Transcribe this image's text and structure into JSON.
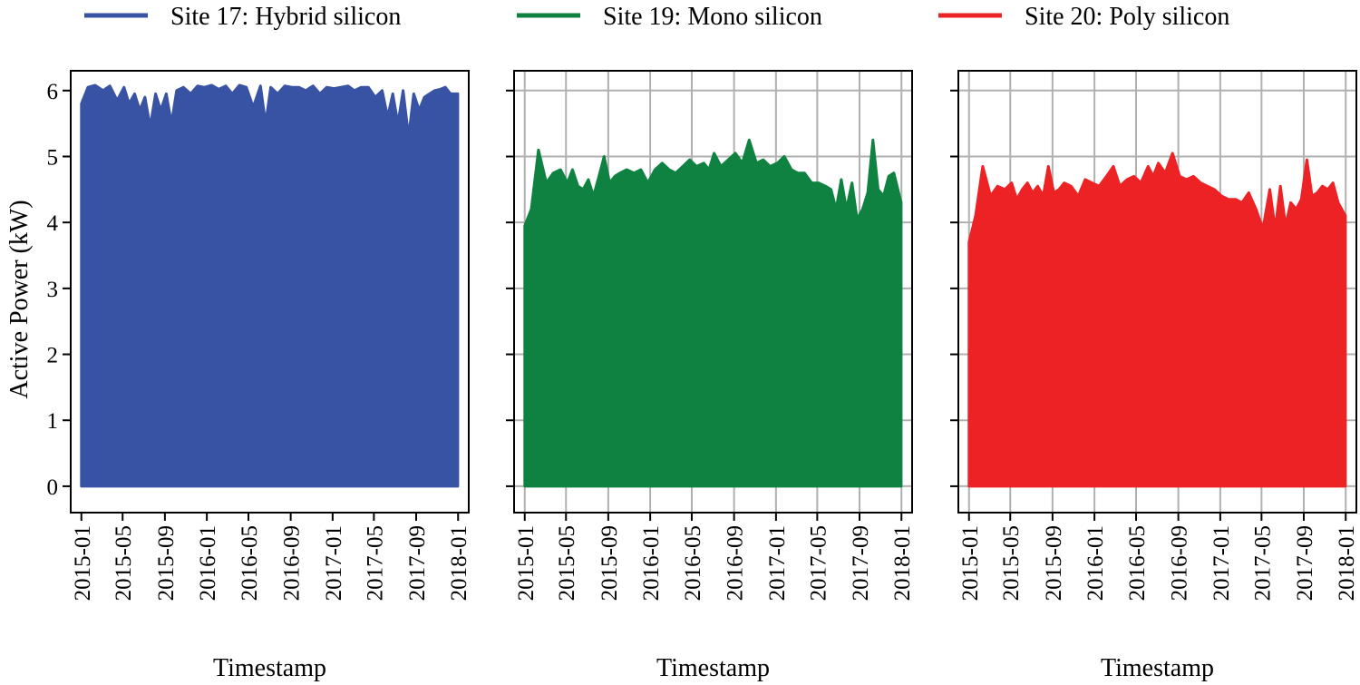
{
  "legend": [
    {
      "label": "Site 17: Hybrid silicon",
      "color": "#3953a4"
    },
    {
      "label": "Site 19: Mono silicon",
      "color": "#0f8241"
    },
    {
      "label": "Site 20: Poly silicon",
      "color": "#ed2224"
    }
  ],
  "chart_data": [
    {
      "type": "area",
      "series_name": "Site 17: Hybrid silicon",
      "color": "#3953a4",
      "xlabel": "Timestamp",
      "ylabel": "Active Power (kW)",
      "ylim": [
        -0.4,
        6.3
      ],
      "yticks": [
        0,
        1,
        2,
        3,
        4,
        5,
        6
      ],
      "xlim": [
        "2014-12-01",
        "2018-02-01"
      ],
      "xticks": [
        "2015-01",
        "2015-05",
        "2015-09",
        "2016-01",
        "2016-05",
        "2016-09",
        "2017-01",
        "2017-05",
        "2017-09",
        "2018-01"
      ],
      "grid": false,
      "peak_envelope": {
        "x": [
          "2015-01-01",
          "2015-01-20",
          "2015-02-10",
          "2015-03-05",
          "2015-03-25",
          "2015-04-15",
          "2015-05-05",
          "2015-05-20",
          "2015-06-05",
          "2015-06-20",
          "2015-07-05",
          "2015-07-20",
          "2015-08-05",
          "2015-08-20",
          "2015-09-05",
          "2015-09-20",
          "2015-10-05",
          "2015-10-25",
          "2015-11-15",
          "2015-12-05",
          "2015-12-25",
          "2016-01-15",
          "2016-02-05",
          "2016-02-25",
          "2016-03-15",
          "2016-04-05",
          "2016-04-25",
          "2016-05-15",
          "2016-06-05",
          "2016-06-20",
          "2016-07-05",
          "2016-07-25",
          "2016-08-15",
          "2016-09-05",
          "2016-09-25",
          "2016-10-15",
          "2016-11-05",
          "2016-11-25",
          "2016-12-15",
          "2017-01-05",
          "2017-01-25",
          "2017-02-15",
          "2017-03-05",
          "2017-03-25",
          "2017-04-15",
          "2017-05-05",
          "2017-05-25",
          "2017-06-10",
          "2017-06-25",
          "2017-07-10",
          "2017-07-25",
          "2017-08-10",
          "2017-08-25",
          "2017-09-10",
          "2017-09-25",
          "2017-10-10",
          "2017-10-25",
          "2017-11-10",
          "2017-11-25",
          "2017-12-10",
          "2017-12-31"
        ],
        "y": [
          5.8,
          6.05,
          6.08,
          6.0,
          6.07,
          5.85,
          6.05,
          5.8,
          5.95,
          5.7,
          5.9,
          5.45,
          5.95,
          5.7,
          5.95,
          5.5,
          6.0,
          6.05,
          5.95,
          6.07,
          6.05,
          6.08,
          6.02,
          6.07,
          5.95,
          6.08,
          6.05,
          5.75,
          6.07,
          5.5,
          6.05,
          5.95,
          6.07,
          6.05,
          6.05,
          6.0,
          6.07,
          5.95,
          6.05,
          6.03,
          6.05,
          6.07,
          6.0,
          6.05,
          6.05,
          5.9,
          6.0,
          5.6,
          5.95,
          5.5,
          6.0,
          5.3,
          5.95,
          5.7,
          5.9,
          5.95,
          6.0,
          6.02,
          6.05,
          5.95,
          5.95
        ]
      }
    },
    {
      "type": "area",
      "series_name": "Site 19: Mono silicon",
      "color": "#0f8241",
      "xlabel": "Timestamp",
      "ylabel": "",
      "ylim": [
        -0.4,
        6.3
      ],
      "yticks": [
        0,
        1,
        2,
        3,
        4,
        5,
        6
      ],
      "xlim": [
        "2014-12-01",
        "2018-02-01"
      ],
      "xticks": [
        "2015-01",
        "2015-05",
        "2015-09",
        "2016-01",
        "2016-05",
        "2016-09",
        "2017-01",
        "2017-05",
        "2017-09",
        "2018-01"
      ],
      "grid": true,
      "peak_envelope": {
        "x": [
          "2015-01-01",
          "2015-01-20",
          "2015-02-10",
          "2015-03-05",
          "2015-03-25",
          "2015-04-15",
          "2015-05-05",
          "2015-05-20",
          "2015-06-05",
          "2015-06-20",
          "2015-07-05",
          "2015-07-20",
          "2015-08-05",
          "2015-08-20",
          "2015-09-05",
          "2015-09-20",
          "2015-10-05",
          "2015-10-25",
          "2015-11-15",
          "2015-12-05",
          "2015-12-25",
          "2016-01-15",
          "2016-02-05",
          "2016-02-25",
          "2016-03-15",
          "2016-04-05",
          "2016-04-25",
          "2016-05-15",
          "2016-06-05",
          "2016-06-20",
          "2016-07-05",
          "2016-07-25",
          "2016-08-15",
          "2016-09-05",
          "2016-09-25",
          "2016-10-15",
          "2016-11-05",
          "2016-11-25",
          "2016-12-15",
          "2017-01-05",
          "2017-01-25",
          "2017-02-15",
          "2017-03-05",
          "2017-03-25",
          "2017-04-15",
          "2017-05-05",
          "2017-05-25",
          "2017-06-10",
          "2017-06-25",
          "2017-07-10",
          "2017-07-25",
          "2017-08-10",
          "2017-08-25",
          "2017-09-10",
          "2017-09-25",
          "2017-10-10",
          "2017-10-25",
          "2017-11-10",
          "2017-11-25",
          "2017-12-10",
          "2017-12-31"
        ],
        "y": [
          3.95,
          4.2,
          5.1,
          4.6,
          4.75,
          4.8,
          4.6,
          4.8,
          4.55,
          4.5,
          4.65,
          4.4,
          4.7,
          5.0,
          4.6,
          4.7,
          4.75,
          4.8,
          4.75,
          4.8,
          4.6,
          4.8,
          4.9,
          4.8,
          4.75,
          4.85,
          4.95,
          4.85,
          4.9,
          4.8,
          5.05,
          4.85,
          4.95,
          5.05,
          4.9,
          5.25,
          4.9,
          4.95,
          4.85,
          4.9,
          5.0,
          4.8,
          4.75,
          4.75,
          4.6,
          4.6,
          4.55,
          4.5,
          4.2,
          4.65,
          4.2,
          4.6,
          4.05,
          4.2,
          4.45,
          5.25,
          4.5,
          4.4,
          4.7,
          4.75,
          4.3
        ]
      }
    },
    {
      "type": "area",
      "series_name": "Site 20: Poly silicon",
      "color": "#ed2224",
      "xlabel": "Timestamp",
      "ylabel": "",
      "ylim": [
        -0.4,
        6.3
      ],
      "yticks": [
        0,
        1,
        2,
        3,
        4,
        5,
        6
      ],
      "xlim": [
        "2014-12-01",
        "2018-02-01"
      ],
      "xticks": [
        "2015-01",
        "2015-05",
        "2015-09",
        "2016-01",
        "2016-05",
        "2016-09",
        "2017-01",
        "2017-05",
        "2017-09",
        "2018-01"
      ],
      "grid": true,
      "peak_envelope": {
        "x": [
          "2015-01-01",
          "2015-01-20",
          "2015-02-10",
          "2015-03-05",
          "2015-03-25",
          "2015-04-15",
          "2015-05-05",
          "2015-05-20",
          "2015-06-05",
          "2015-06-20",
          "2015-07-05",
          "2015-07-20",
          "2015-08-05",
          "2015-08-20",
          "2015-09-05",
          "2015-09-20",
          "2015-10-05",
          "2015-10-25",
          "2015-11-15",
          "2015-12-05",
          "2015-12-25",
          "2016-01-15",
          "2016-02-05",
          "2016-02-25",
          "2016-03-15",
          "2016-04-05",
          "2016-04-25",
          "2016-05-15",
          "2016-06-05",
          "2016-06-20",
          "2016-07-05",
          "2016-07-25",
          "2016-08-15",
          "2016-09-05",
          "2016-09-25",
          "2016-10-15",
          "2016-11-05",
          "2016-11-25",
          "2016-12-15",
          "2017-01-05",
          "2017-01-25",
          "2017-02-15",
          "2017-03-05",
          "2017-03-25",
          "2017-04-15",
          "2017-05-05",
          "2017-05-25",
          "2017-06-10",
          "2017-06-25",
          "2017-07-10",
          "2017-07-25",
          "2017-08-10",
          "2017-08-25",
          "2017-09-10",
          "2017-09-25",
          "2017-10-10",
          "2017-10-25",
          "2017-11-10",
          "2017-11-25",
          "2017-12-10",
          "2017-12-31"
        ],
        "y": [
          3.7,
          4.1,
          4.85,
          4.4,
          4.55,
          4.5,
          4.6,
          4.35,
          4.5,
          4.6,
          4.45,
          4.55,
          4.4,
          4.85,
          4.45,
          4.5,
          4.6,
          4.55,
          4.4,
          4.65,
          4.6,
          4.55,
          4.7,
          4.85,
          4.55,
          4.65,
          4.7,
          4.6,
          4.85,
          4.7,
          4.9,
          4.75,
          5.05,
          4.7,
          4.65,
          4.7,
          4.6,
          4.55,
          4.5,
          4.4,
          4.35,
          4.35,
          4.3,
          4.45,
          4.2,
          3.9,
          4.5,
          3.9,
          4.55,
          3.95,
          4.3,
          4.2,
          4.35,
          4.95,
          4.4,
          4.45,
          4.55,
          4.5,
          4.6,
          4.3,
          4.1
        ]
      }
    }
  ]
}
